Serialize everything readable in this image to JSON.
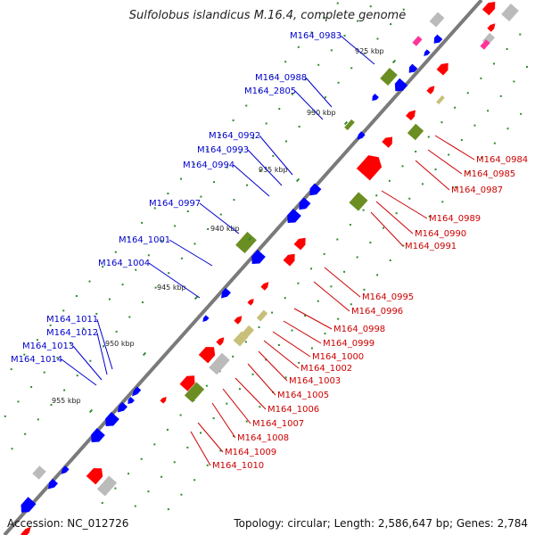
{
  "title": "Sulfolobus islandicus M.16.4, complete genome",
  "footer": {
    "accession": "Accession: NC_012726",
    "topology": "Topology: circular; Length: 2,586,647 bp; Genes: 2,784"
  },
  "colors": {
    "plus_label": "#0000cc",
    "minus_label": "#cc0000",
    "cds_blue": "#0000ff",
    "cds_red": "#ff0000",
    "gene_green": "#6b8e23",
    "gene_gray": "#bbbbbb",
    "gene_khaki": "#c8c07a",
    "gene_pink": "#ff3399",
    "backbone": "#7a7a7a",
    "dots": "#2e8b2e"
  },
  "kbp_marks": [
    {
      "text": "925 kbp",
      "kb": 925
    },
    {
      "text": "930 kbp",
      "kb": 930
    },
    {
      "text": "935 kbp",
      "kb": 935
    },
    {
      "text": "940 kbp",
      "kb": 940
    },
    {
      "text": "945 kbp",
      "kb": 945
    },
    {
      "text": "950 kbp",
      "kb": 950
    },
    {
      "text": "955 kbp",
      "kb": 955
    }
  ],
  "genes_plus": [
    {
      "name": "M164_0983"
    },
    {
      "name": "M164_0988"
    },
    {
      "name": "M164_2805"
    },
    {
      "name": "M164_0992"
    },
    {
      "name": "M164_0993"
    },
    {
      "name": "M164_0994"
    },
    {
      "name": "M164_0997"
    },
    {
      "name": "M164_1001"
    },
    {
      "name": "M164_1004"
    },
    {
      "name": "M164_1011"
    },
    {
      "name": "M164_1012"
    },
    {
      "name": "M164_1013"
    },
    {
      "name": "M164_1014"
    }
  ],
  "genes_minus": [
    {
      "name": "M164_0984"
    },
    {
      "name": "M164_0985"
    },
    {
      "name": "M164_0987"
    },
    {
      "name": "M164_0989"
    },
    {
      "name": "M164_0990"
    },
    {
      "name": "M164_0991"
    },
    {
      "name": "M164_0995"
    },
    {
      "name": "M164_0996"
    },
    {
      "name": "M164_0998"
    },
    {
      "name": "M164_0999"
    },
    {
      "name": "M164_1000"
    },
    {
      "name": "M164_1002"
    },
    {
      "name": "M164_1003"
    },
    {
      "name": "M164_1005"
    },
    {
      "name": "M164_1006"
    },
    {
      "name": "M164_1007"
    },
    {
      "name": "M164_1008"
    },
    {
      "name": "M164_1009"
    },
    {
      "name": "M164_1010"
    }
  ]
}
